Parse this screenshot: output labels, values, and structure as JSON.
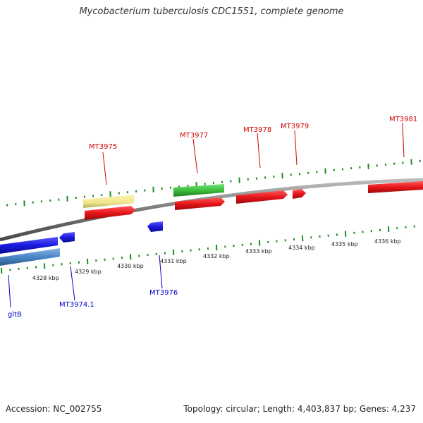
{
  "title": "Mycobacterium tuberculosis CDC1551, complete genome",
  "footer": {
    "accession": "Accession: NC_002755",
    "summary": "Topology: circular; Length: 4,403,837 bp; Genes: 4,237"
  },
  "colors": {
    "forward_gene": "#e8161c",
    "reverse_gene": "#1a1ae0",
    "rna": "#3cbf3c",
    "misc_feature": "#f0e68c",
    "reverse_misc": "#4a86c8",
    "backbone": "#7a7a7a",
    "tick": "#1e8a1e",
    "fwd_label": "#d00000",
    "rev_label": "#0000c8"
  },
  "scale_labels": [
    "4328 kbp",
    "4329 kbp",
    "4330 kbp",
    "4331 kbp",
    "4332 kbp",
    "4333 kbp",
    "4334 kbp",
    "4335 kbp",
    "4336 kbp"
  ],
  "forward_labels": [
    "MT3975",
    "MT3977",
    "MT3978",
    "MT3979",
    "MT3981"
  ],
  "reverse_labels": [
    "gltB",
    "MT3974.1",
    "MT3976"
  ]
}
